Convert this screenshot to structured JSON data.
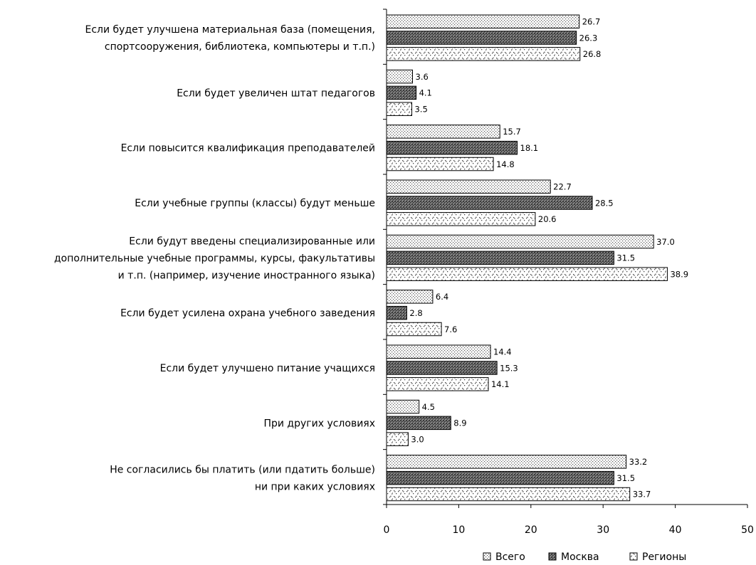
{
  "chart_data": {
    "type": "bar",
    "orientation": "horizontal",
    "categories": [
      [
        "Если будет улучшена материальная база (помещения,",
        "спортсооружения, библиотека, компьютеры и т.п.)"
      ],
      [
        "Если будет увеличен штат педагогов"
      ],
      [
        "Если повысится квалификация преподавателей"
      ],
      [
        "Если учебные группы (классы) будут меньше"
      ],
      [
        "Если будут введены специализированные или",
        "дополнительные учебные программы, курсы, факультативы",
        "и т.п. (например, изучение иностранного языка)"
      ],
      [
        "Если будет усилена охрана учебного заведения"
      ],
      [
        "Если будет улучшено питание учащихся"
      ],
      [
        "При других условиях"
      ],
      [
        "Не согласились бы платить (или пдатить больше)",
        "ни при каких условиях"
      ]
    ],
    "series": [
      {
        "name": "Всего",
        "values": [
          26.7,
          3.6,
          15.7,
          22.7,
          37.0,
          6.4,
          14.4,
          4.5,
          33.2
        ],
        "labels": [
          "26.7",
          "3.6",
          "15.7",
          "22.7",
          "37.0",
          "6.4",
          "14.4",
          "4.5",
          "33.2"
        ],
        "pattern": "dots"
      },
      {
        "name": "Москва",
        "values": [
          26.3,
          4.1,
          18.1,
          28.5,
          31.5,
          2.8,
          15.3,
          8.9,
          31.5
        ],
        "labels": [
          "26.3",
          "4.1",
          "18.1",
          "28.5",
          "31.5",
          "2.8",
          "15.3",
          "8.9",
          "31.5"
        ],
        "pattern": "dark"
      },
      {
        "name": "Регионы",
        "values": [
          26.8,
          3.5,
          14.8,
          20.6,
          38.9,
          7.6,
          14.1,
          3.0,
          33.7
        ],
        "labels": [
          "26.8",
          "3.5",
          "14.8",
          "20.6",
          "38.9",
          "7.6",
          "14.1",
          "3.0",
          "33.7"
        ],
        "pattern": "confetti"
      }
    ],
    "x_ticks": [
      "0",
      "10",
      "20",
      "30",
      "40",
      "50"
    ],
    "xlim": [
      0,
      50
    ],
    "grid": false,
    "legend_position": "bottom"
  }
}
